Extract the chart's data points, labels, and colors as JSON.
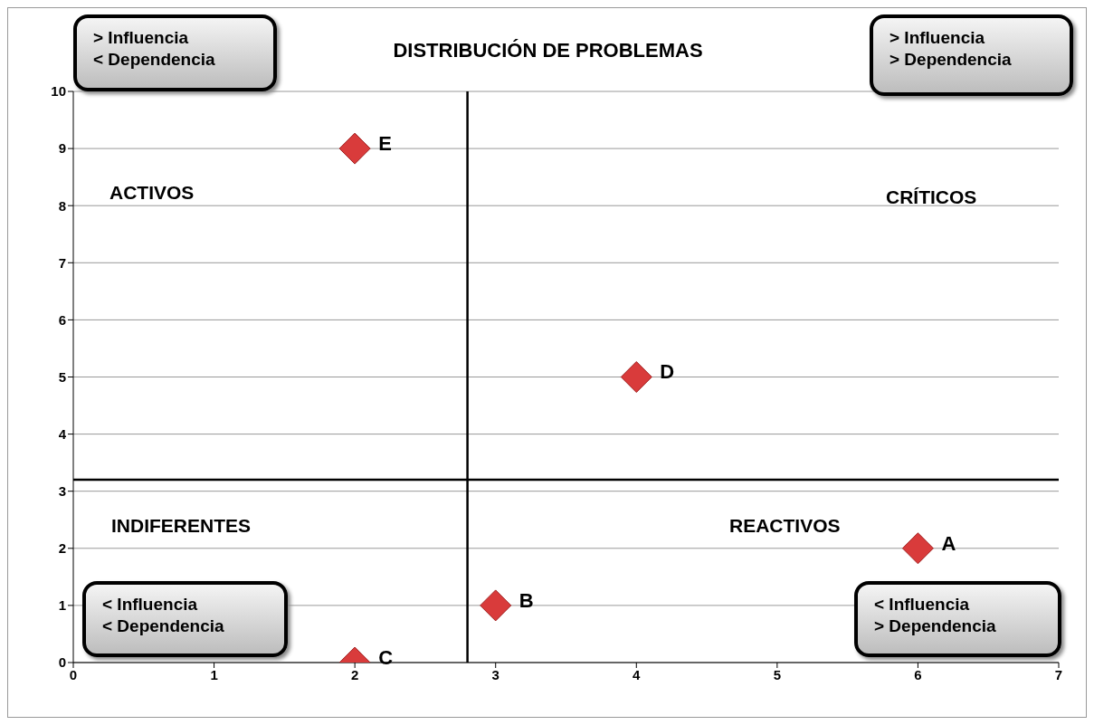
{
  "chart_data": {
    "type": "scatter",
    "title": "DISTRIBUCIÓN DE PROBLEMAS",
    "x": [
      6,
      3,
      2,
      4,
      2
    ],
    "series": [
      {
        "color": "#d93b3b",
        "values": [
          2,
          1,
          0,
          5,
          9
        ]
      }
    ],
    "xlim": [
      0,
      7
    ],
    "xticks": [
      0,
      1,
      2,
      3,
      4,
      5,
      6,
      7
    ],
    "ylim": [
      0,
      10
    ],
    "yticks": [
      0,
      1,
      2,
      3,
      4,
      5,
      6,
      7,
      8,
      9,
      10
    ],
    "grid": "y",
    "marker": "diamond",
    "ref_lines": [
      {
        "axis": "x",
        "value": 2.8,
        "color": "#000000"
      },
      {
        "axis": "y",
        "value": 3.2,
        "color": "#000000"
      }
    ],
    "annotations": [
      "> Influencia\n< Dependencia",
      "> Influencia\n> Dependencia",
      "< Influencia\n< Dependencia",
      "< Influencia\n> Dependencia",
      "ACTIVOS",
      "CRÍTICOS",
      "INDIFERENTES",
      "REACTIVOS",
      {
        "text": "A",
        "x": 6,
        "y": 2
      },
      {
        "text": "B",
        "x": 3,
        "y": 1
      },
      {
        "text": "C",
        "x": 2,
        "y": 0
      },
      {
        "text": "D",
        "x": 4,
        "y": 5
      },
      {
        "text": "E",
        "x": 2,
        "y": 9
      }
    ]
  }
}
